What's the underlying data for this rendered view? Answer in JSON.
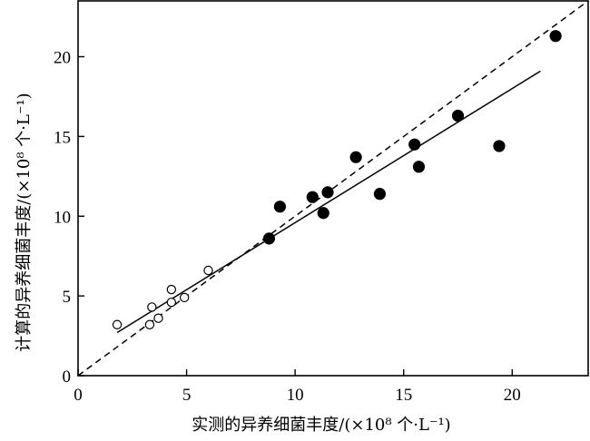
{
  "chart_data": {
    "type": "scatter",
    "xlabel": "实测的异养细菌丰度/(×10⁸ 个·L⁻¹)",
    "ylabel": "计算的异养细菌丰度/(×10⁸ 个·L⁻¹)",
    "xlim": [
      0,
      23.5
    ],
    "ylim": [
      0,
      23.5
    ],
    "x_ticks": [
      0,
      5,
      10,
      15,
      20
    ],
    "y_ticks": [
      0,
      5,
      10,
      15,
      20
    ],
    "grid": false,
    "legend": "none",
    "series": [
      {
        "marker": "open-circle",
        "points": [
          [
            1.8,
            3.2
          ],
          [
            3.3,
            3.2
          ],
          [
            3.4,
            4.3
          ],
          [
            3.7,
            3.6
          ],
          [
            4.3,
            4.6
          ],
          [
            4.3,
            5.4
          ],
          [
            4.9,
            4.9
          ],
          [
            6.0,
            6.6
          ]
        ]
      },
      {
        "marker": "filled-circle",
        "points": [
          [
            8.8,
            8.6
          ],
          [
            9.3,
            10.6
          ],
          [
            10.8,
            11.2
          ],
          [
            11.3,
            10.2
          ],
          [
            11.5,
            11.5
          ],
          [
            12.8,
            13.7
          ],
          [
            13.9,
            11.4
          ],
          [
            15.5,
            14.5
          ],
          [
            15.7,
            13.1
          ],
          [
            17.5,
            16.3
          ],
          [
            19.4,
            14.4
          ],
          [
            22.0,
            21.3
          ]
        ]
      }
    ],
    "lines": [
      {
        "style": "dashed",
        "from": [
          0,
          0
        ],
        "to": [
          23.5,
          23.5
        ]
      },
      {
        "style": "solid",
        "from": [
          1.8,
          2.7
        ],
        "to": [
          21.3,
          19.1
        ]
      }
    ]
  }
}
